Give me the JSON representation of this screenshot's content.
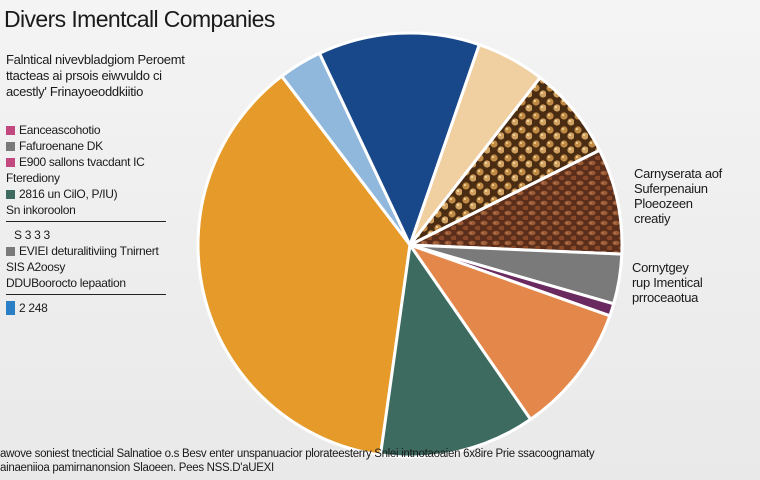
{
  "colors": {
    "orange": "#e59a2a",
    "teal": "#3d6b5f",
    "light_orange": "#e4874a",
    "purple": "#6b2a5f",
    "gray": "#7a7a7a",
    "almond_fill": "#6a3a22",
    "chickpea_fill": "#c99a55",
    "cream": "#f0cfa1",
    "navy": "#18488a",
    "light_blue": "#8fb8dc",
    "legend_pink": "#c2497f",
    "legend_green": "#3d6b5f",
    "legend_blue": "#2a7fc7"
  },
  "chart_data": {
    "type": "pie",
    "title": "Divers Imentcall Companies",
    "subtitle": [
      "Falntical nivevbladgiom Peroemt",
      "ttacteas ai prsois eiwvuldo ci",
      "acestly' Frinayoeoddkiitio"
    ],
    "slices": [
      {
        "label": "",
        "value": 39.5,
        "color": "orange"
      },
      {
        "label": "",
        "value": 12.5,
        "color": "teal"
      },
      {
        "label": "",
        "value": 10.5,
        "color": "light_orange"
      },
      {
        "label": "",
        "value": 1.0,
        "color": "purple"
      },
      {
        "label": "",
        "value": 4.0,
        "color": "gray"
      },
      {
        "label": "",
        "value": 8.5,
        "color": "almond_fill"
      },
      {
        "label": "",
        "value": 7.5,
        "color": "chickpea_fill"
      },
      {
        "label": "",
        "value": 5.5,
        "color": "cream"
      },
      {
        "label": "",
        "value": 13.0,
        "color": "navy"
      },
      {
        "label": "",
        "value": 3.5,
        "color": "light_blue"
      }
    ],
    "legend": [
      {
        "swatch": "legend_pink",
        "text": "Eanceascohotio"
      },
      {
        "swatch": "gray",
        "text": "Fafuroenane  DK"
      },
      {
        "swatch": "legend_pink",
        "text": "E900 sallons tvacdant IC"
      },
      {
        "swatch": "",
        "text": "Fterediony"
      },
      {
        "swatch": "legend_green",
        "text": "2816 un CilO, P/IU)"
      },
      {
        "swatch": "",
        "text": "Sn inkoroolon"
      },
      {
        "rule": true
      },
      {
        "swatch": "",
        "text": "S 3 3 3",
        "indent": true
      },
      {
        "swatch": "gray",
        "text": "EVIEI deturalitiviing  Tnirnert"
      },
      {
        "swatch": "",
        "text": "SIS A2oosy"
      },
      {
        "swatch": "",
        "text": "DDUBoorocto lepaation"
      },
      {
        "rule": true
      },
      {
        "swatch": "legend_blue",
        "text": "2 248",
        "large": true
      }
    ],
    "annotations": [
      [
        "Carnyserata aof",
        "Suferpenaiun",
        "Ploeozeen",
        "creatiy"
      ],
      [
        "Cornytgey",
        "rup Imentical",
        "prroceaotua"
      ]
    ],
    "footer": [
      "awove soniest tnecticial Salnatioe o.s  Besv enter unspanuacior plorateesterry  Snlei intnotaoaien 6x8ire  Prie ssacoognamaty",
      "ainaeniioa pamirnanonsion Slaoeen.  Pees NSS.D'aUEXI"
    ]
  }
}
